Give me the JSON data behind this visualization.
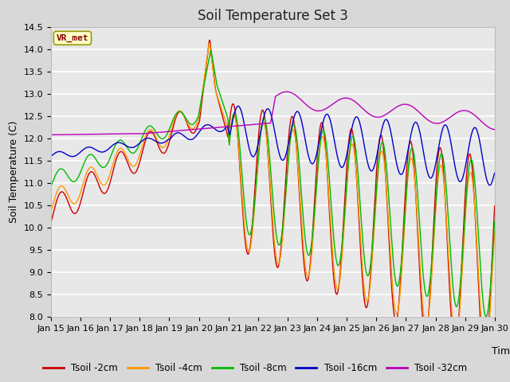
{
  "title": "Soil Temperature Set 3",
  "xlabel": "Time",
  "ylabel": "Soil Temperature (C)",
  "ylim": [
    8.0,
    14.5
  ],
  "yticks": [
    8.0,
    8.5,
    9.0,
    9.5,
    10.0,
    10.5,
    11.0,
    11.5,
    12.0,
    12.5,
    13.0,
    13.5,
    14.0,
    14.5
  ],
  "series_colors": {
    "Tsoil -2cm": "#cc0000",
    "Tsoil -4cm": "#ff9900",
    "Tsoil -8cm": "#00bb00",
    "Tsoil -16cm": "#0000cc",
    "Tsoil -32cm": "#bb00bb"
  },
  "series_names": [
    "Tsoil -2cm",
    "Tsoil -4cm",
    "Tsoil -8cm",
    "Tsoil -16cm",
    "Tsoil -32cm"
  ],
  "x_tick_labels": [
    "Jan 15",
    "Jan 16",
    "Jan 17",
    "Jan 18",
    "Jan 19",
    "Jan 20",
    "Jan 21",
    "Jan 22",
    "Jan 23",
    "Jan 24",
    "Jan 25",
    "Jan 26",
    "Jan 27",
    "Jan 28",
    "Jan 29",
    "Jan 30"
  ],
  "watermark": "VR_met",
  "watermark_bg": "#ffffcc",
  "watermark_border": "#999900",
  "watermark_text_color": "#880000",
  "fig_bg_color": "#d8d8d8",
  "plot_bg_color": "#e8e8e8",
  "grid_color": "#ffffff",
  "title_fontsize": 12,
  "label_fontsize": 9,
  "tick_fontsize": 8
}
